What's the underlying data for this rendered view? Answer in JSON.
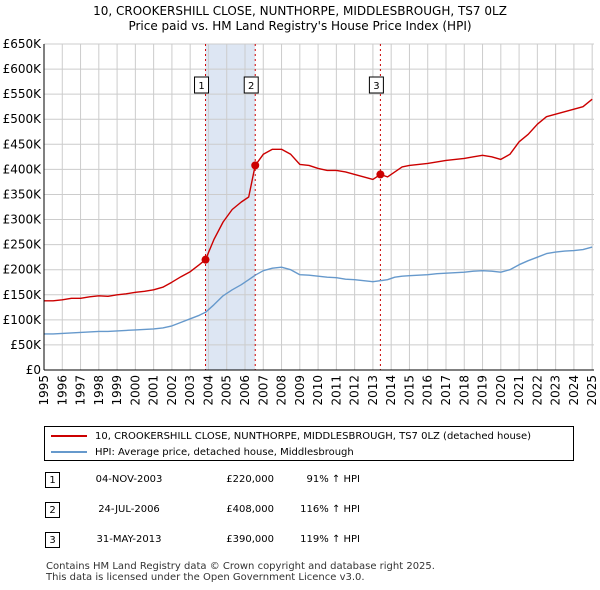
{
  "title_line1": "10, CROOKERSHILL CLOSE, NUNTHORPE, MIDDLESBROUGH, TS7 0LZ",
  "title_line2": "Price paid vs. HM Land Registry's House Price Index (HPI)",
  "colors": {
    "property": "#cc0000",
    "hpi": "#6699cc",
    "highlight": "#dde6f3",
    "grid": "#cccccc"
  },
  "chart_data": {
    "type": "line",
    "title": "Price paid vs. HM Land Registry's House Price Index (HPI)",
    "xlim": [
      1995,
      2025.1
    ],
    "ylim": [
      0,
      650000
    ],
    "y_ticks": [
      0,
      50000,
      100000,
      150000,
      200000,
      250000,
      300000,
      350000,
      400000,
      450000,
      500000,
      550000,
      600000,
      650000
    ],
    "y_tick_labels": [
      "£0",
      "£50K",
      "£100K",
      "£150K",
      "£200K",
      "£250K",
      "£300K",
      "£350K",
      "£400K",
      "£450K",
      "£500K",
      "£550K",
      "£600K",
      "£650K"
    ],
    "x_ticks": [
      1995,
      1996,
      1997,
      1998,
      1999,
      2000,
      2001,
      2002,
      2003,
      2004,
      2005,
      2006,
      2007,
      2008,
      2009,
      2010,
      2011,
      2012,
      2013,
      2014,
      2015,
      2016,
      2017,
      2018,
      2019,
      2020,
      2021,
      2022,
      2023,
      2024,
      2025
    ],
    "x_tick_labels": [
      "1995",
      "1996",
      "1997",
      "1998",
      "1999",
      "2000",
      "2001",
      "2002",
      "2003",
      "2004",
      "2005",
      "2006",
      "2007",
      "2008",
      "2009",
      "2010",
      "2011",
      "2012",
      "2013",
      "2014",
      "2015",
      "2016",
      "2017",
      "2018",
      "2019",
      "2020",
      "2021",
      "2022",
      "2023",
      "2024",
      "2025"
    ],
    "grid": true,
    "highlight_span": [
      2003.84,
      2006.56
    ],
    "series": [
      {
        "name": "10, CROOKERSHILL CLOSE, NUNTHORPE, MIDDLESBROUGH, TS7 0LZ (detached house)",
        "color": "#cc0000",
        "x": [
          1995,
          1995.5,
          1996,
          1996.5,
          1997,
          1997.5,
          1998,
          1998.5,
          1999,
          1999.5,
          2000,
          2000.5,
          2001,
          2001.5,
          2002,
          2002.5,
          2003,
          2003.5,
          2003.84,
          2004.3,
          2004.8,
          2005.3,
          2005.8,
          2006.2,
          2006.56,
          2007,
          2007.5,
          2008,
          2008.5,
          2009,
          2009.5,
          2010,
          2010.5,
          2011,
          2011.5,
          2012,
          2012.5,
          2013,
          2013.41,
          2013.8,
          2014.2,
          2014.6,
          2015,
          2015.5,
          2016,
          2016.5,
          2017,
          2017.5,
          2018,
          2018.5,
          2019,
          2019.5,
          2020,
          2020.5,
          2021,
          2021.5,
          2022,
          2022.5,
          2023,
          2023.5,
          2024,
          2024.5,
          2025
        ],
        "values": [
          138000,
          138000,
          140000,
          143000,
          143000,
          146000,
          148000,
          147000,
          150000,
          152000,
          155000,
          157000,
          160000,
          165000,
          175000,
          186000,
          196000,
          210000,
          220000,
          260000,
          295000,
          320000,
          335000,
          345000,
          408000,
          430000,
          440000,
          440000,
          430000,
          410000,
          408000,
          402000,
          398000,
          398000,
          395000,
          390000,
          385000,
          380000,
          390000,
          385000,
          395000,
          405000,
          408000,
          410000,
          412000,
          415000,
          418000,
          420000,
          422000,
          425000,
          428000,
          425000,
          420000,
          430000,
          455000,
          470000,
          490000,
          505000,
          510000,
          515000,
          520000,
          525000,
          540000
        ]
      },
      {
        "name": "HPI: Average price, detached house, Middlesbrough",
        "color": "#6699cc",
        "x": [
          1995,
          1995.5,
          1996,
          1996.5,
          1997,
          1997.5,
          1998,
          1998.5,
          1999,
          1999.5,
          2000,
          2000.5,
          2001,
          2001.5,
          2002,
          2002.5,
          2003,
          2003.5,
          2003.84,
          2004.3,
          2004.8,
          2005.3,
          2005.8,
          2006.2,
          2006.56,
          2007,
          2007.5,
          2008,
          2008.5,
          2009,
          2009.5,
          2010,
          2010.5,
          2011,
          2011.5,
          2012,
          2012.5,
          2013,
          2013.41,
          2013.8,
          2014.2,
          2014.6,
          2015,
          2015.5,
          2016,
          2016.5,
          2017,
          2017.5,
          2018,
          2018.5,
          2019,
          2019.5,
          2020,
          2020.5,
          2021,
          2021.5,
          2022,
          2022.5,
          2023,
          2023.5,
          2024,
          2024.5,
          2025
        ],
        "values": [
          72000,
          72000,
          73000,
          74000,
          75000,
          76000,
          77000,
          77000,
          78000,
          79000,
          80000,
          81000,
          82000,
          84000,
          88000,
          95000,
          102000,
          109000,
          115000,
          130000,
          148000,
          160000,
          170000,
          180000,
          189000,
          198000,
          203000,
          205000,
          200000,
          190000,
          189000,
          187000,
          185000,
          184000,
          181000,
          180000,
          178000,
          176000,
          178000,
          180000,
          185000,
          187000,
          188000,
          189000,
          190000,
          192000,
          193000,
          194000,
          195000,
          197000,
          198000,
          197000,
          195000,
          200000,
          210000,
          218000,
          225000,
          232000,
          235000,
          237000,
          238000,
          240000,
          245000
        ]
      }
    ],
    "sales": [
      {
        "label": "1",
        "x": 2003.84,
        "value": 220000
      },
      {
        "label": "2",
        "x": 2006.56,
        "value": 408000
      },
      {
        "label": "3",
        "x": 2013.41,
        "value": 390000
      }
    ]
  },
  "legend": {
    "property": "10, CROOKERSHILL CLOSE, NUNTHORPE, MIDDLESBROUGH, TS7 0LZ (detached house)",
    "hpi": "HPI: Average price, detached house, Middlesbrough"
  },
  "transactions": [
    {
      "num": "1",
      "date": "04-NOV-2003",
      "price": "£220,000",
      "hpi": "91% ↑ HPI"
    },
    {
      "num": "2",
      "date": "24-JUL-2006",
      "price": "£408,000",
      "hpi": "116% ↑ HPI"
    },
    {
      "num": "3",
      "date": "31-MAY-2013",
      "price": "£390,000",
      "hpi": "119% ↑ HPI"
    }
  ],
  "footer_line1": "Contains HM Land Registry data © Crown copyright and database right 2025.",
  "footer_line2": "This data is licensed under the Open Government Licence v3.0."
}
